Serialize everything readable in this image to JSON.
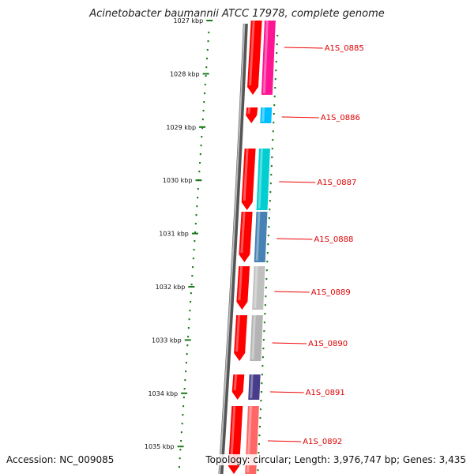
{
  "title": "Acinetobacter baumannii ATCC 17978, complete genome",
  "accession_text": "Accession: NC_009085",
  "topology_text": "Topology: circular; Length: 3,976,747 bp; Genes: 3,435",
  "ticks": [
    {
      "label": "1027 kbp",
      "kbp": 1027
    },
    {
      "label": "1028 kbp",
      "kbp": 1028
    },
    {
      "label": "1029 kbp",
      "kbp": 1029
    },
    {
      "label": "1030 kbp",
      "kbp": 1030
    },
    {
      "label": "1031 kbp",
      "kbp": 1031
    },
    {
      "label": "1032 kbp",
      "kbp": 1032
    },
    {
      "label": "1033 kbp",
      "kbp": 1033
    },
    {
      "label": "1034 kbp",
      "kbp": 1034
    },
    {
      "label": "1035 kbp",
      "kbp": 1035
    }
  ],
  "genes": [
    {
      "label": "A1S_0885",
      "color": "#ff1493",
      "cds_color": "#ff0000"
    },
    {
      "label": "A1S_0886",
      "color": "#00bfff",
      "cds_color": "#ff0000"
    },
    {
      "label": "A1S_0887",
      "color": "#00ced1",
      "cds_color": "#ff0000"
    },
    {
      "label": "A1S_0888",
      "color": "#4682b4",
      "cds_color": "#ff0000"
    },
    {
      "label": "A1S_0889",
      "color": "#c0c0c0",
      "cds_color": "#ff0000"
    },
    {
      "label": "A1S_0890",
      "color": "#b4b4b4",
      "cds_color": "#ff0000"
    },
    {
      "label": "A1S_0891",
      "color": "#483d8b",
      "cds_color": "#ff0000"
    },
    {
      "label": "A1S_0892",
      "color": "#ff6666",
      "cds_color": "#ff0000"
    }
  ],
  "colors": {
    "backbone": "#7a7a7a",
    "tick": "#1a7a1a",
    "label_line": "#ee0000",
    "label_text": "#dd0000"
  }
}
